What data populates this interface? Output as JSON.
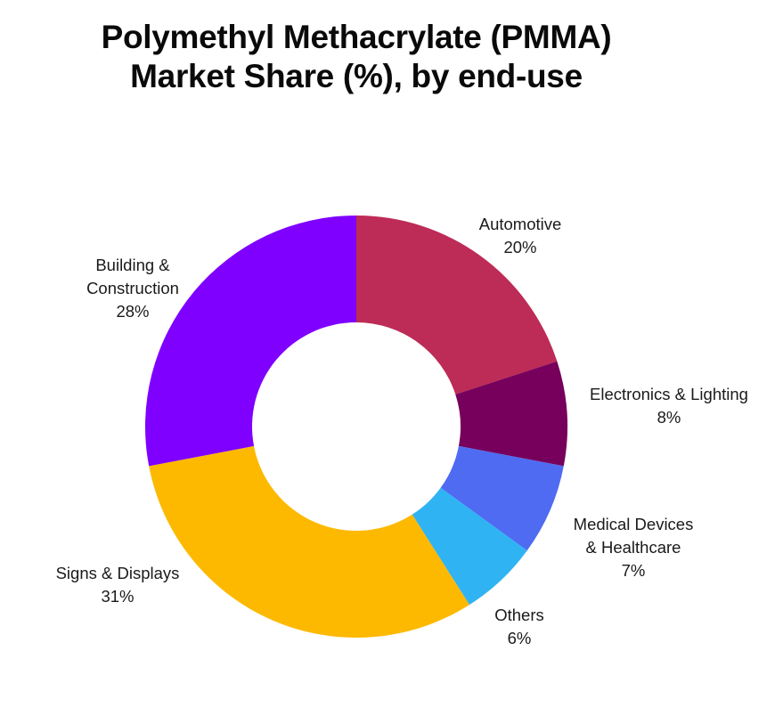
{
  "title": {
    "line1": "Polymethyl Methacrylate (PMMA)",
    "line2": "Market Share (%), by end-use"
  },
  "chart_data": {
    "type": "pie",
    "variant": "donut",
    "title": "Polymethyl Methacrylate (PMMA) Market Share (%), by end-use",
    "start_angle": "12 o'clock, clockwise",
    "categories": [
      "Automotive",
      "Electronics & Lighting",
      "Medical Devices & Healthcare",
      "Others",
      "Signs & Displays",
      "Building & Construction"
    ],
    "values": [
      20,
      8,
      7,
      6,
      31,
      28
    ],
    "unit": "%",
    "colors": [
      "#bd2b57",
      "#76005c",
      "#4e6bf2",
      "#30b3f3",
      "#fdb900",
      "#7f00ff"
    ],
    "legend": "none (direct labels)"
  },
  "labels": [
    {
      "name": "Automotive",
      "lines": [
        "Automotive",
        "20%"
      ]
    },
    {
      "name": "Electronics & Lighting",
      "lines": [
        "Electronics & Lighting",
        "8%"
      ]
    },
    {
      "name": "Medical Devices & Healthcare",
      "lines": [
        "Medical Devices",
        "& Healthcare",
        "7%"
      ]
    },
    {
      "name": "Others",
      "lines": [
        "Others",
        "6%"
      ]
    },
    {
      "name": "Signs & Displays",
      "lines": [
        "Signs & Displays",
        "31%"
      ]
    },
    {
      "name": "Building & Construction",
      "lines": [
        "Building &",
        "Construction",
        "28%"
      ]
    }
  ]
}
